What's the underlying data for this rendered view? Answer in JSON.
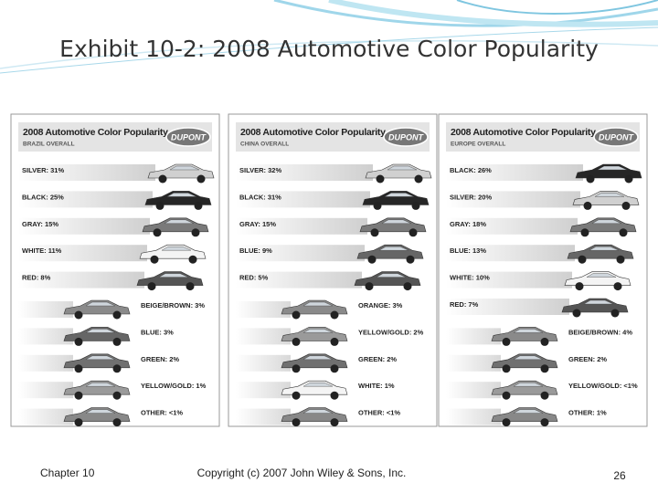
{
  "title": "Exhibit 10-2: 2008 Automotive Color Popularity",
  "panels": [
    {
      "heading": "2008 Automotive Color Popularity",
      "logo": "DUPONT",
      "region": "BRAZIL OVERALL",
      "rows": [
        "SILVER: 31%",
        "BLACK: 25%",
        "GRAY: 15%",
        "WHITE: 11%",
        "RED: 8%",
        "BEIGE/BROWN: 3%",
        "BLUE: 3%",
        "GREEN: 2%",
        "YELLOW/GOLD: 1%",
        "OTHER: <1%"
      ]
    },
    {
      "heading": "2008 Automotive Color Popularity",
      "logo": "DUPONT",
      "region": "CHINA OVERALL",
      "rows": [
        "SILVER: 32%",
        "BLACK: 31%",
        "GRAY: 15%",
        "BLUE: 9%",
        "RED: 5%",
        "ORANGE: 3%",
        "YELLOW/GOLD: 2%",
        "GREEN: 2%",
        "WHITE: 1%",
        "OTHER: <1%"
      ]
    },
    {
      "heading": "2008 Automotive Color Popularity",
      "logo": "DUPONT",
      "region": "EUROPE OVERALL",
      "rows": [
        "BLACK: 26%",
        "SILVER: 20%",
        "GRAY: 18%",
        "BLUE: 13%",
        "WHITE: 10%",
        "RED: 7%",
        "BEIGE/BROWN: 4%",
        "GREEN: 2%",
        "YELLOW/GOLD: <1%",
        "OTHER: 1%"
      ]
    }
  ],
  "footer": {
    "left": "Chapter 10",
    "center": "Copyright (c) 2007 John Wiley & Sons, Inc.",
    "page": 26
  }
}
